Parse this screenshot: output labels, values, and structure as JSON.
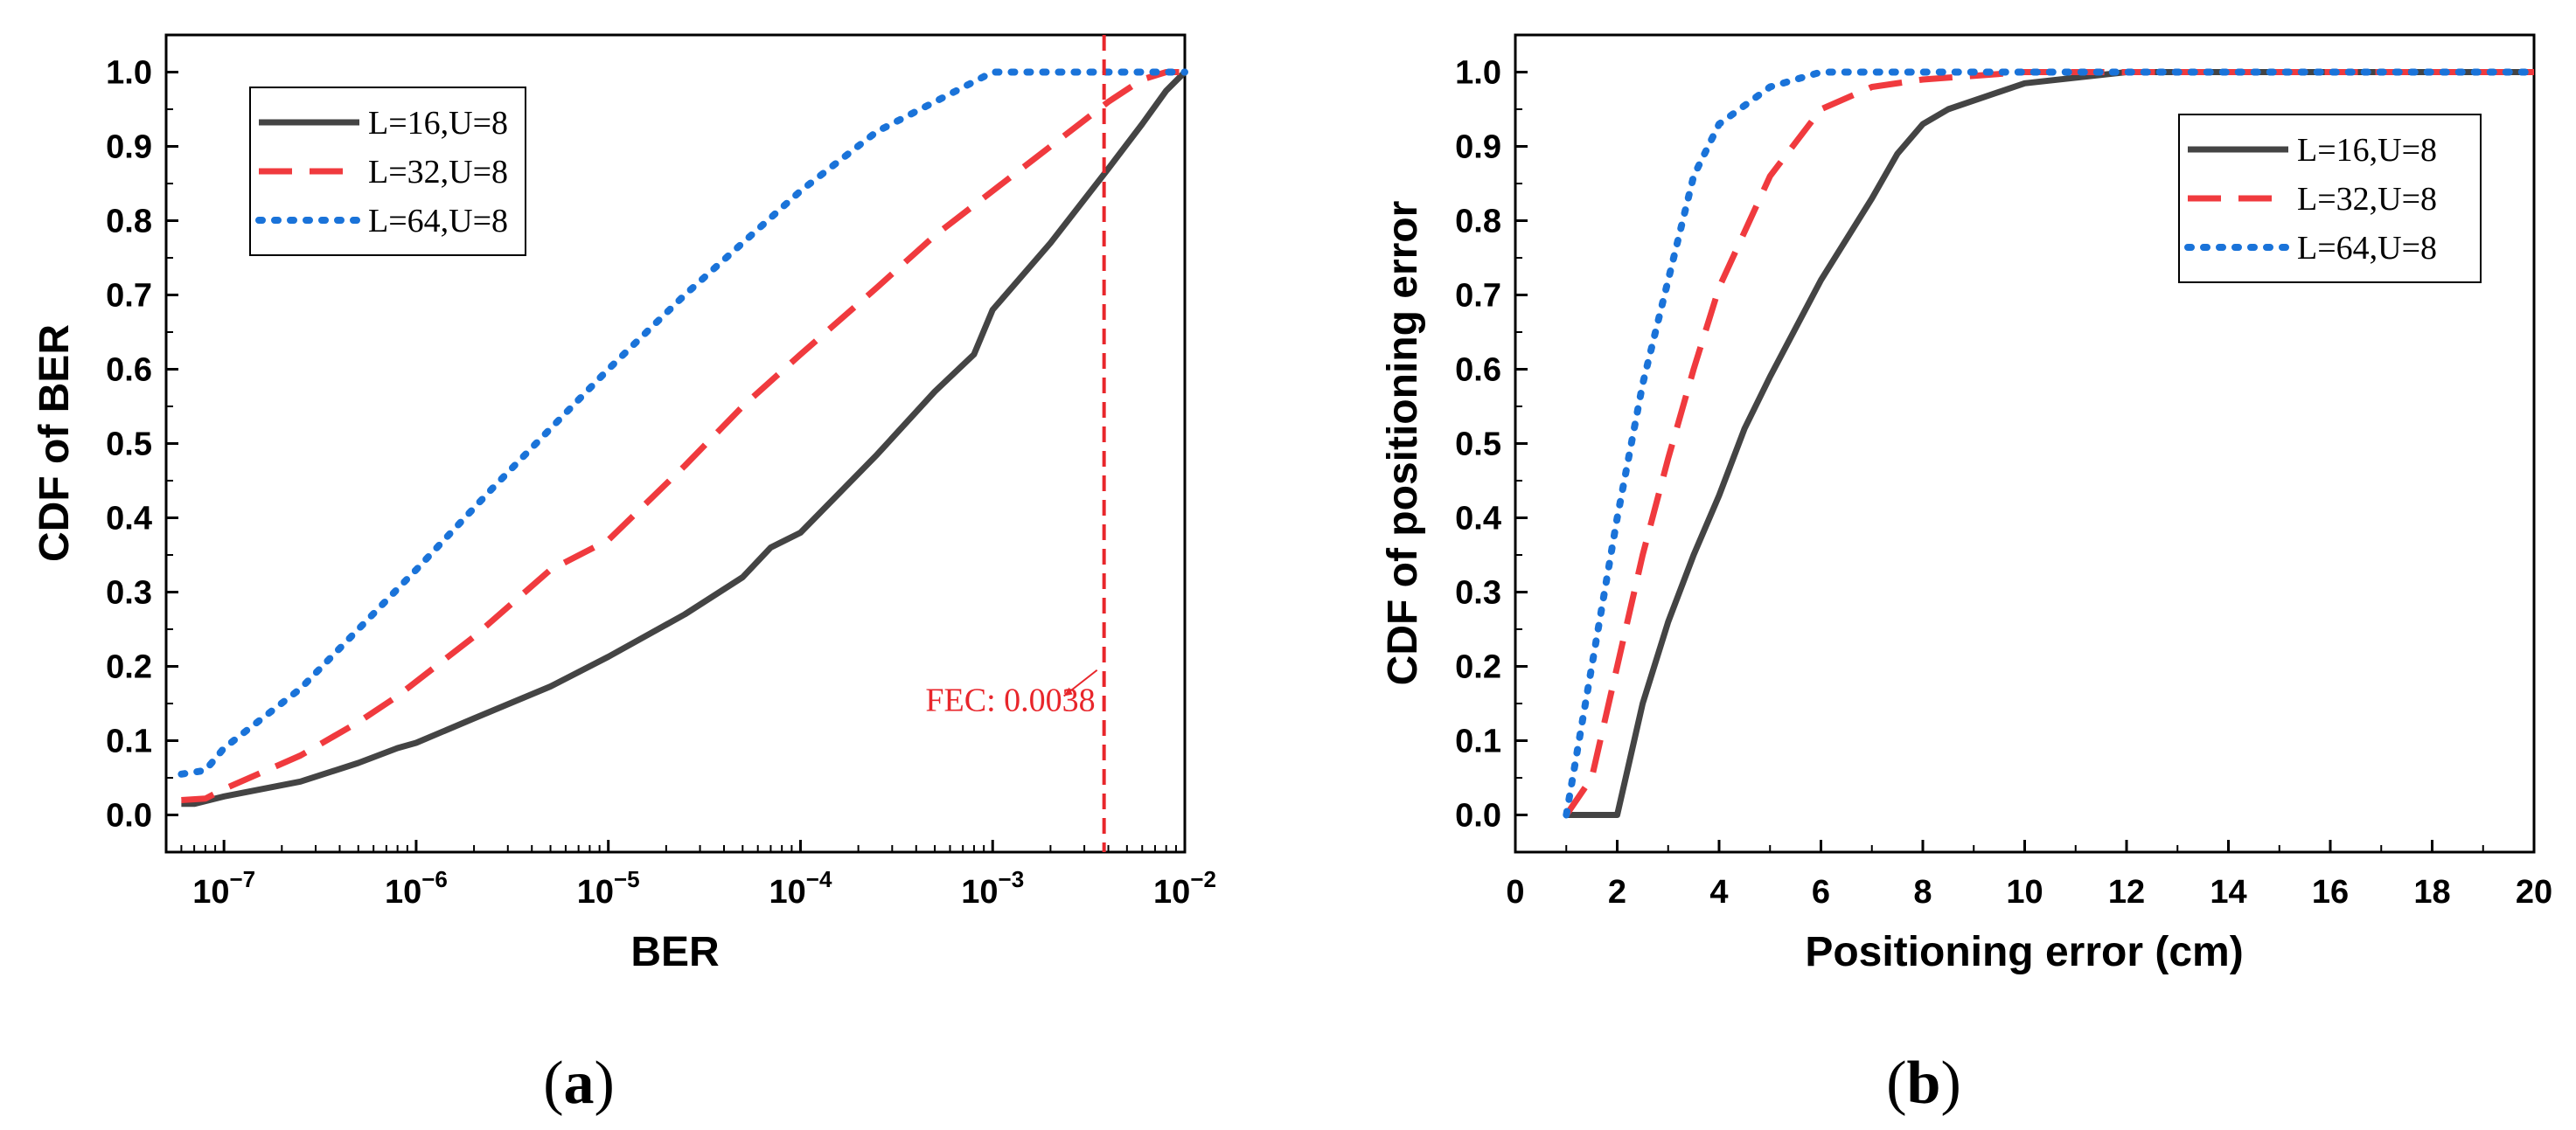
{
  "colors": {
    "L16": "#444444",
    "L32": "#f03a3e",
    "L64": "#1a73d9",
    "fec": "#e8262b"
  },
  "chart_data": [
    {
      "panel": "(a)",
      "type": "line",
      "xscale": "log",
      "xlim": [
        5e-08,
        0.01
      ],
      "ylim": [
        -0.05,
        1.05
      ],
      "xlabel": "BER",
      "ylabel": "CDF of BER",
      "xticks": [
        1e-07,
        1e-06,
        1e-05,
        0.0001,
        0.001,
        0.01
      ],
      "xtick_labels": [
        {
          "base": "10",
          "exp": "−7"
        },
        {
          "base": "10",
          "exp": "−6"
        },
        {
          "base": "10",
          "exp": "−5"
        },
        {
          "base": "10",
          "exp": "−4"
        },
        {
          "base": "10",
          "exp": "−3"
        },
        {
          "base": "10",
          "exp": "−2"
        }
      ],
      "yticks": [
        "0.0",
        "0.1",
        "0.2",
        "0.3",
        "0.4",
        "0.5",
        "0.6",
        "0.7",
        "0.8",
        "0.9",
        "1.0"
      ],
      "legend_position": "top-left",
      "annotation": {
        "text": "FEC: 0.0038",
        "x": 0.0038
      },
      "series": [
        {
          "name": "L=16,U=8",
          "style": "solid",
          "color_key": "L16",
          "points": [
            [
              6e-08,
              0.015
            ],
            [
              7e-08,
              0.015
            ],
            [
              1e-07,
              0.025
            ],
            [
              2.5e-07,
              0.045
            ],
            [
              5e-07,
              0.07
            ],
            [
              8e-07,
              0.09
            ],
            [
              1e-06,
              0.097
            ],
            [
              2e-06,
              0.13
            ],
            [
              5e-06,
              0.173
            ],
            [
              1e-05,
              0.213
            ],
            [
              2.5e-05,
              0.27
            ],
            [
              5e-05,
              0.32
            ],
            [
              7e-05,
              0.36
            ],
            [
              0.0001,
              0.38
            ],
            [
              0.00025,
              0.485
            ],
            [
              0.0005,
              0.57
            ],
            [
              0.0008,
              0.62
            ],
            [
              0.001,
              0.68
            ],
            [
              0.002,
              0.77
            ],
            [
              0.004,
              0.87
            ],
            [
              0.006,
              0.93
            ],
            [
              0.008,
              0.975
            ],
            [
              0.01,
              1.0
            ]
          ]
        },
        {
          "name": "L=32,U=8",
          "style": "dashed",
          "color_key": "L32",
          "points": [
            [
              6e-08,
              0.02
            ],
            [
              8e-08,
              0.022
            ],
            [
              1e-07,
              0.035
            ],
            [
              2.5e-07,
              0.08
            ],
            [
              5e-07,
              0.125
            ],
            [
              8e-07,
              0.16
            ],
            [
              2e-06,
              0.24
            ],
            [
              5e-06,
              0.33
            ],
            [
              1e-05,
              0.37
            ],
            [
              2.5e-05,
              0.47
            ],
            [
              5e-05,
              0.55
            ],
            [
              0.0001,
              0.62
            ],
            [
              0.00025,
              0.71
            ],
            [
              0.0005,
              0.78
            ],
            [
              0.001,
              0.84
            ],
            [
              0.002,
              0.9
            ],
            [
              0.004,
              0.96
            ],
            [
              0.006,
              0.99
            ],
            [
              0.008,
              1.0
            ],
            [
              0.01,
              1.0
            ]
          ]
        },
        {
          "name": "L=64,U=8",
          "style": "dotted",
          "color_key": "L64",
          "points": [
            [
              6e-08,
              0.055
            ],
            [
              8e-08,
              0.06
            ],
            [
              1e-07,
              0.09
            ],
            [
              2.5e-07,
              0.17
            ],
            [
              5e-07,
              0.25
            ],
            [
              1e-06,
              0.33
            ],
            [
              2.5e-06,
              0.44
            ],
            [
              5e-06,
              0.52
            ],
            [
              1e-05,
              0.6
            ],
            [
              2.5e-05,
              0.7
            ],
            [
              5e-05,
              0.77
            ],
            [
              0.0001,
              0.84
            ],
            [
              0.00025,
              0.92
            ],
            [
              0.0005,
              0.96
            ],
            [
              0.001,
              1.0
            ],
            [
              0.002,
              1.0
            ],
            [
              0.004,
              1.0
            ],
            [
              0.01,
              1.0
            ]
          ]
        }
      ]
    },
    {
      "panel": "(b)",
      "type": "line",
      "xscale": "linear",
      "xlim": [
        0,
        20
      ],
      "ylim": [
        -0.05,
        1.05
      ],
      "xlabel": "Positioning error (cm)",
      "ylabel": "CDF of positioning error",
      "xticks": [
        "0",
        "2",
        "4",
        "6",
        "8",
        "10",
        "12",
        "14",
        "16",
        "18",
        "20"
      ],
      "yticks": [
        "0.0",
        "0.1",
        "0.2",
        "0.3",
        "0.4",
        "0.5",
        "0.6",
        "0.7",
        "0.8",
        "0.9",
        "1.0"
      ],
      "legend_position": "top-right",
      "series": [
        {
          "name": "L=16,U=8",
          "style": "solid",
          "color_key": "L16",
          "points": [
            [
              1,
              0
            ],
            [
              2,
              0
            ],
            [
              2.5,
              0.15
            ],
            [
              3,
              0.26
            ],
            [
              3.5,
              0.35
            ],
            [
              4,
              0.43
            ],
            [
              4.5,
              0.52
            ],
            [
              5,
              0.59
            ],
            [
              6,
              0.72
            ],
            [
              7,
              0.83
            ],
            [
              7.5,
              0.89
            ],
            [
              8,
              0.93
            ],
            [
              8.5,
              0.95
            ],
            [
              10,
              0.985
            ],
            [
              12,
              1.0
            ],
            [
              20,
              1.0
            ]
          ]
        },
        {
          "name": "L=32,U=8",
          "style": "dashed",
          "color_key": "L32",
          "points": [
            [
              1,
              0
            ],
            [
              1.5,
              0.05
            ],
            [
              2,
              0.2
            ],
            [
              2.5,
              0.35
            ],
            [
              3,
              0.48
            ],
            [
              3.5,
              0.6
            ],
            [
              4,
              0.71
            ],
            [
              5,
              0.86
            ],
            [
              6,
              0.95
            ],
            [
              7,
              0.98
            ],
            [
              8,
              0.99
            ],
            [
              10,
              1.0
            ],
            [
              20,
              1.0
            ]
          ]
        },
        {
          "name": "L=64,U=8",
          "style": "dotted",
          "color_key": "L64",
          "points": [
            [
              1,
              0
            ],
            [
              1.5,
              0.2
            ],
            [
              2,
              0.4
            ],
            [
              2.5,
              0.58
            ],
            [
              3,
              0.72
            ],
            [
              3.5,
              0.86
            ],
            [
              4,
              0.93
            ],
            [
              5,
              0.98
            ],
            [
              6,
              1.0
            ],
            [
              20,
              1.0
            ]
          ]
        }
      ]
    }
  ]
}
